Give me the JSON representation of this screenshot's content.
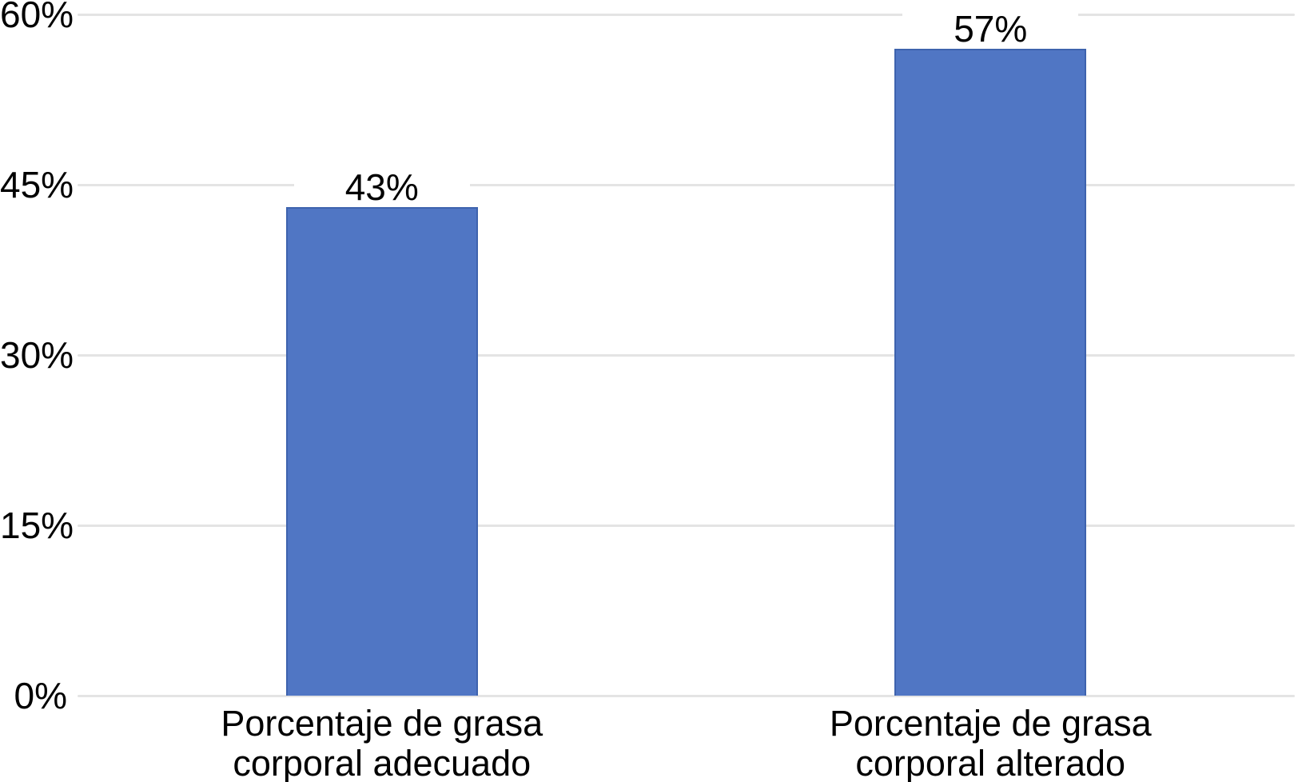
{
  "chart_data": {
    "type": "bar",
    "categories": [
      "Porcentaje de grasa corporal adecuado",
      "Porcentaje de grasa corporal alterado"
    ],
    "values": [
      43,
      57
    ],
    "value_labels": [
      "43%",
      "57%"
    ],
    "title": "",
    "xlabel": "",
    "ylabel": "",
    "ylim": [
      0,
      60
    ],
    "yticks": [
      0,
      15,
      30,
      45,
      60
    ],
    "ytick_labels": [
      "0%",
      "15%",
      "30%",
      "45%",
      "60%"
    ],
    "grid": true,
    "legend": false,
    "colors": {
      "bar_fill": "#5076c4",
      "bar_border": "#3e63ae",
      "gridline": "#e4e4e4",
      "text": "#000000",
      "background": "#ffffff"
    }
  }
}
